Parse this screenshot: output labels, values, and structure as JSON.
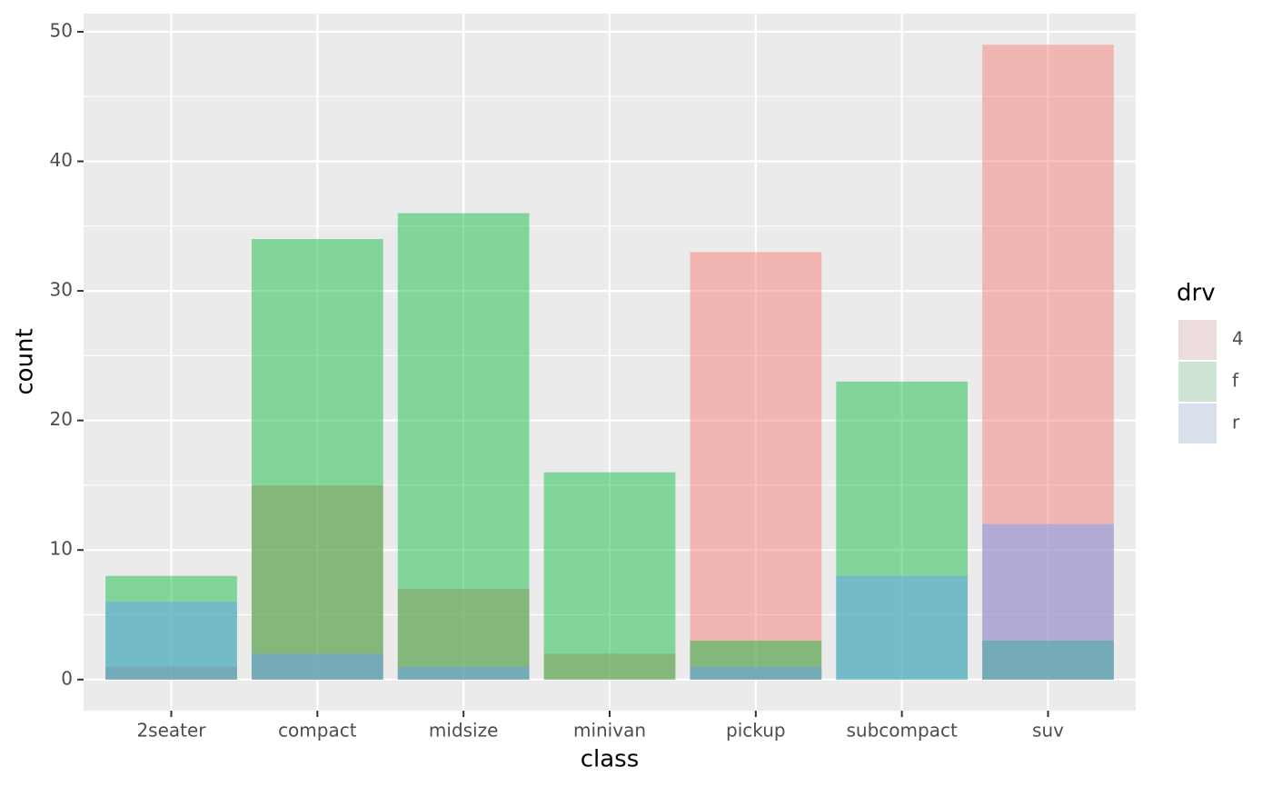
{
  "chart_data": {
    "type": "bar",
    "x_label": "class",
    "y_label": "count",
    "legend_title": "drv",
    "categories": [
      "2seater",
      "compact",
      "midsize",
      "minivan",
      "pickup",
      "subcompact",
      "suv"
    ],
    "series": [
      {
        "name": "4",
        "color": "#F8766D",
        "values": [
          1,
          15,
          7,
          2,
          33,
          0,
          49
        ]
      },
      {
        "name": "f",
        "color": "#00BA38",
        "values": [
          8,
          34,
          36,
          16,
          3,
          23,
          3
        ]
      },
      {
        "name": "r",
        "color": "#619CFF",
        "values": [
          6,
          2,
          1,
          0,
          1,
          8,
          12
        ]
      }
    ],
    "ylim": [
      -2.4,
      51.4
    ],
    "yticks": [
      0,
      10,
      20,
      30,
      40,
      50
    ],
    "grid": true,
    "legend": "right"
  }
}
